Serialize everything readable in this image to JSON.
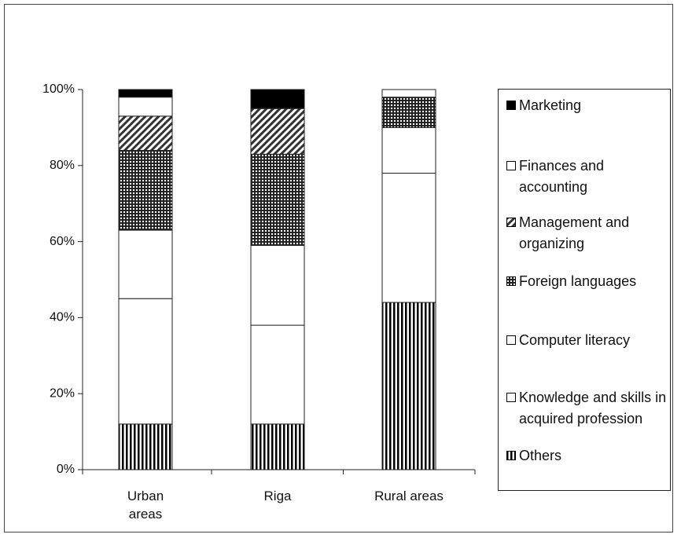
{
  "chart_data": {
    "type": "stacked-bar",
    "categories": [
      "Urban areas",
      "Riga",
      "Rural areas"
    ],
    "series": [
      {
        "name": "Others",
        "color": "#000000",
        "pattern": "vertical-stripes",
        "values": [
          12,
          12,
          44
        ]
      },
      {
        "name": "Knowledge and skills in acquired profession",
        "color": "#ffffff",
        "pattern": "solid",
        "values": [
          33,
          26,
          34
        ]
      },
      {
        "name": "Computer literacy",
        "color": "#ffffff",
        "pattern": "solid",
        "values": [
          18,
          21,
          12
        ]
      },
      {
        "name": "Foreign languages",
        "color": "#222222",
        "pattern": "crosshatch",
        "values": [
          21,
          24,
          8
        ]
      },
      {
        "name": "Management and organizing",
        "color": "#333333",
        "pattern": "diagonal",
        "values": [
          9,
          12,
          0
        ]
      },
      {
        "name": "Finances and accounting",
        "color": "#ffffff",
        "pattern": "solid",
        "values": [
          5,
          0,
          2
        ]
      },
      {
        "name": "Marketing",
        "color": "#000000",
        "pattern": "solid",
        "values": [
          2,
          5,
          0
        ]
      }
    ],
    "ylim": [
      0,
      100
    ],
    "yticks": [
      {
        "value": 0,
        "label": "0%"
      },
      {
        "value": 20,
        "label": "20%"
      },
      {
        "value": 40,
        "label": "40%"
      },
      {
        "value": 60,
        "label": "60%"
      },
      {
        "value": 80,
        "label": "80%"
      },
      {
        "value": 100,
        "label": "100%"
      }
    ],
    "legend": "right"
  }
}
